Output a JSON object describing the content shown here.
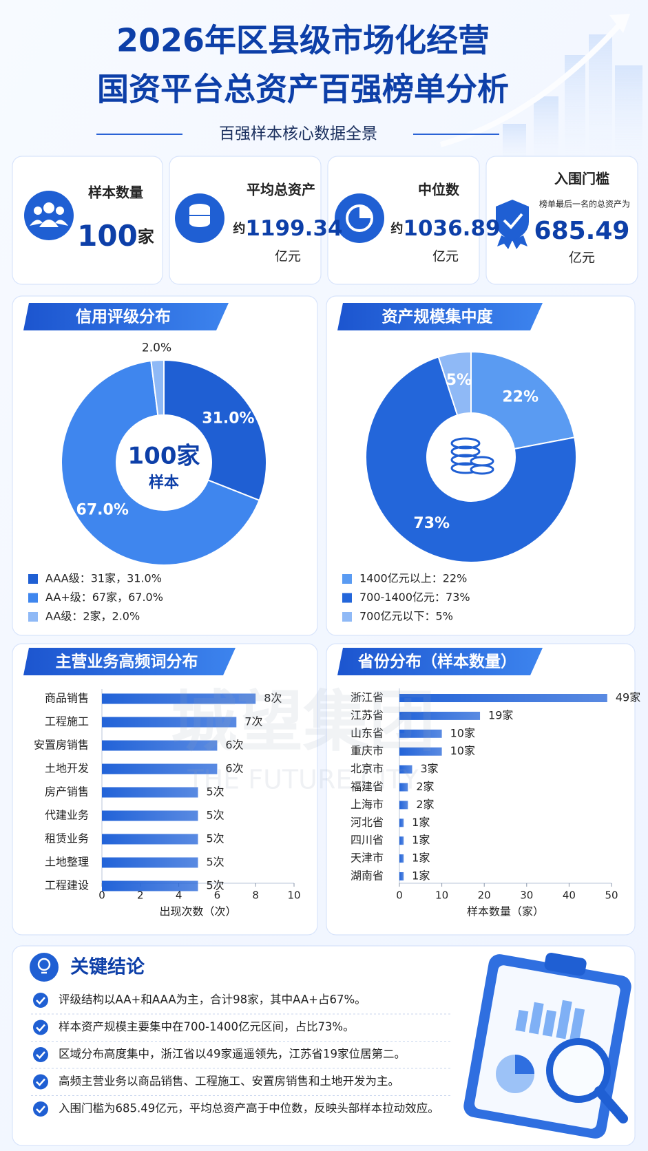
{
  "header": {
    "title_lines": [
      "2026年区县级市场化经营",
      "国资平台总资产百强榜单分析"
    ],
    "subtitle": "百强样本核心数据全景"
  },
  "stats": [
    {
      "label": "样本数量",
      "value": "100",
      "unit": "家"
    },
    {
      "label": "平均总资产",
      "prefix": "约",
      "value": "1199.34",
      "unit": "亿元"
    },
    {
      "label": "中位数",
      "prefix": "约",
      "value": "1036.89",
      "unit": "亿元"
    },
    {
      "label": "入围门槛",
      "note": "榜单最后一名的总资产为",
      "value": "685.49",
      "unit": "亿元"
    }
  ],
  "chart_data": [
    {
      "type": "pie",
      "title": "信用评级分布",
      "center_text": "100家",
      "center_subtext": "样本",
      "categories": [
        "AAA级：31家，31.0%",
        "AA+级：67家，67.0%",
        "AA级：2家，2.0%"
      ],
      "values": [
        31,
        67,
        2
      ],
      "value_labels": [
        "31.0%",
        "67.0%",
        "2.0%"
      ],
      "colors": [
        "#1f5fd3",
        "#3f86ee",
        "#8fb9f6"
      ]
    },
    {
      "type": "pie",
      "title": "资产规模集中度",
      "categories": [
        "1400亿元以上：22%",
        "700-1400亿元：73%",
        "700亿元以下：5%"
      ],
      "values": [
        22,
        73,
        5
      ],
      "value_labels": [
        "22%",
        "73%",
        "5%"
      ],
      "colors": [
        "#5a9bf2",
        "#2366da",
        "#8fb9f6"
      ]
    },
    {
      "type": "bar",
      "title": "主营业务高频词分布",
      "categories": [
        "商品销售",
        "工程施工",
        "安置房销售",
        "土地开发",
        "房产销售",
        "代建业务",
        "租赁业务",
        "土地整理",
        "工程建设"
      ],
      "values": [
        8,
        7,
        6,
        6,
        5,
        5,
        5,
        5,
        5
      ],
      "value_labels": [
        "8次",
        "7次",
        "6次",
        "6次",
        "5次",
        "5次",
        "5次",
        "5次",
        "5次"
      ],
      "xlim": [
        0,
        10
      ],
      "xticks": [
        0,
        2,
        4,
        6,
        8,
        10
      ],
      "xlabel": "出现次数（次）",
      "color": "#2263d8"
    },
    {
      "type": "bar",
      "title": "省份分布（样本数量）",
      "categories": [
        "浙江省",
        "江苏省",
        "山东省",
        "重庆市",
        "北京市",
        "福建省",
        "上海市",
        "河北省",
        "四川省",
        "天津市",
        "湖南省"
      ],
      "values": [
        49,
        19,
        10,
        10,
        3,
        2,
        2,
        1,
        1,
        1,
        1
      ],
      "value_labels": [
        "49家",
        "19家",
        "10家",
        "10家",
        "3家",
        "2家",
        "2家",
        "1家",
        "1家",
        "1家",
        "1家"
      ],
      "xlim": [
        0,
        50
      ],
      "xticks": [
        0,
        10,
        20,
        30,
        40,
        50
      ],
      "xlabel": "样本数量（家）",
      "color": "#2263d8"
    }
  ],
  "conclusions": {
    "title": "关键结论",
    "items": [
      "评级结构以AA+和AAA为主，合计98家，其中AA+占67%。",
      "样本资产规模主要集中在700-1400亿元区间，占比73%。",
      "区域分布高度集中，浙江省以49家遥遥领先，江苏省19家位居第二。",
      "高频主营业务以商品销售、工程施工、安置房销售和土地开发为主。",
      "入围门槛为685.49亿元，平均总资产高于中位数，反映头部样本拉动效应。"
    ]
  },
  "watermark": {
    "text": "城望集团",
    "subtext": "THE FUTURE CITY"
  }
}
